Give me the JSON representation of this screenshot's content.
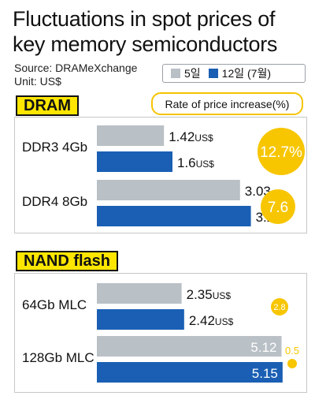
{
  "title_line1": "Fluctuations in spot prices of",
  "title_line2": "key memory semiconductors",
  "source": "Source: DRAMeXchange",
  "unit": "Unit: US$",
  "legend": [
    {
      "label": "5일",
      "color": "#b9c0c6"
    },
    {
      "label": "12일 (7월)",
      "color": "#1a5fb4"
    }
  ],
  "increase_note": "Rate of price increase(%)",
  "colors": {
    "gray": "#b9c0c6",
    "blue": "#1a5fb4",
    "yellow": "#f7c600",
    "tag": "#ffe600"
  },
  "unit_suffix": "US$",
  "chart_data": [
    {
      "type": "bar",
      "group": "DRAM",
      "categories": [
        "DDR3 4Gb",
        "DDR4 8Gb"
      ],
      "series": [
        {
          "name": "5일",
          "values": [
            1.42,
            3.03
          ],
          "labels": [
            "1.42",
            "3.03"
          ]
        },
        {
          "name": "12일 (7월)",
          "values": [
            1.6,
            3.26
          ],
          "labels": [
            "1.6",
            "3.26"
          ]
        }
      ],
      "unit_shown": [
        true,
        false
      ],
      "increase_rate": [
        12.7,
        7.6
      ],
      "increase_labels": [
        "12.7%",
        "7.6"
      ]
    },
    {
      "type": "bar",
      "group": "NAND flash",
      "categories": [
        "64Gb MLC",
        "128Gb MLC"
      ],
      "series": [
        {
          "name": "5일",
          "values": [
            2.35,
            5.12
          ],
          "labels": [
            "2.35",
            "5.12"
          ]
        },
        {
          "name": "12일 (7월)",
          "values": [
            2.42,
            5.15
          ],
          "labels": [
            "2.42",
            "5.15"
          ]
        }
      ],
      "unit_shown": [
        true,
        false
      ],
      "increase_rate": [
        2.8,
        0.5
      ],
      "increase_labels": [
        "2.8",
        "0.5"
      ]
    }
  ]
}
